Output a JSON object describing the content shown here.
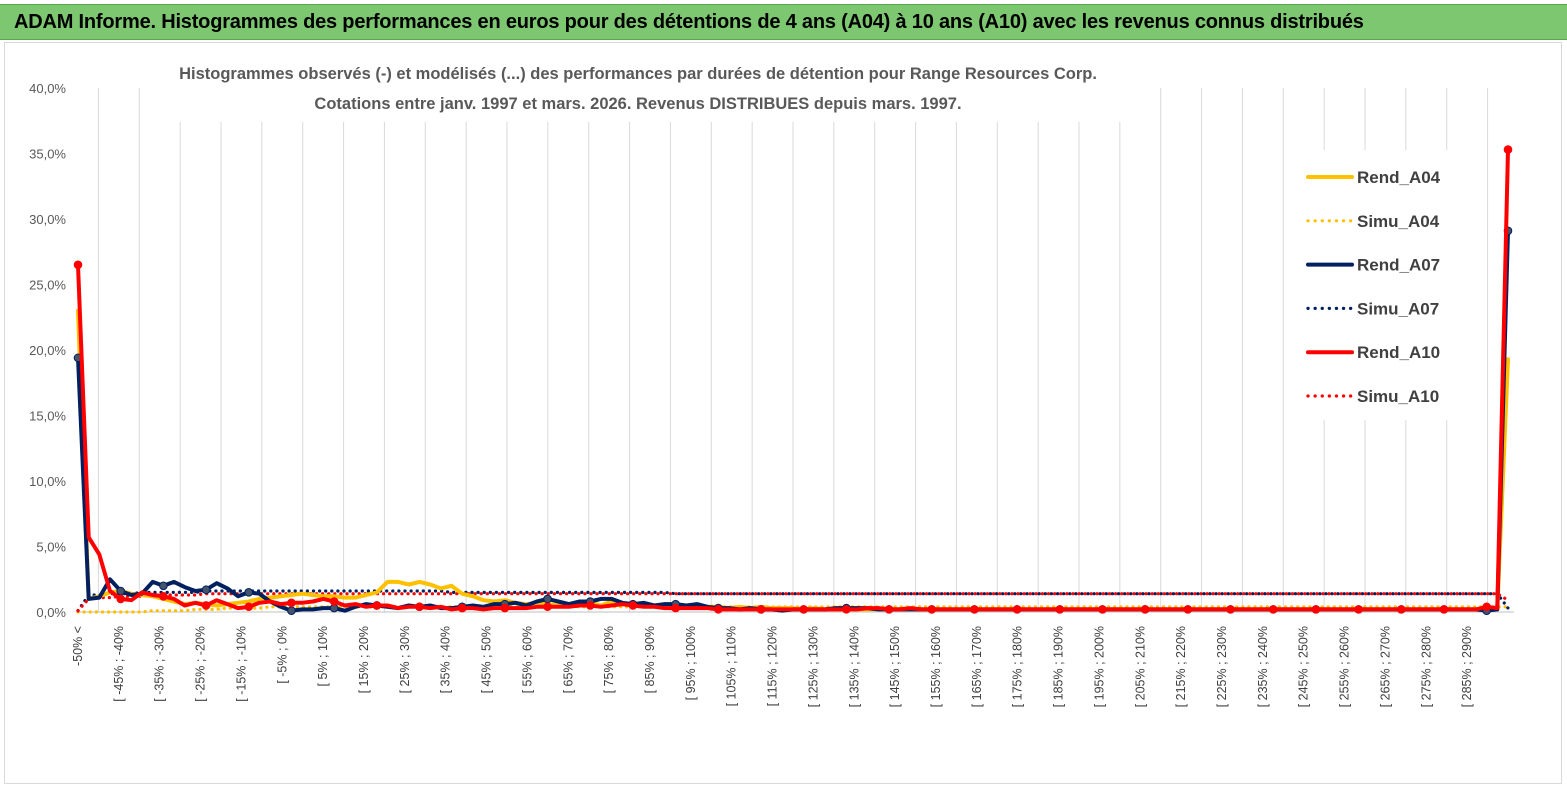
{
  "header": {
    "title": "ADAM Informe. Histogrammes des performances en euros pour des détentions de 4 ans (A04) à 10 ans (A10) avec les revenus connus distribués"
  },
  "chart_data": {
    "type": "line",
    "subtitle_lines": [
      "Histogrammes observés (-) et modélisés (...) des performances par durées de détention pour Range Resources Corp.",
      "Cotations entre janv. 1997 et mars. 2026. Revenus DISTRIBUES depuis mars. 1997."
    ],
    "y_ticks": [
      "0,0%",
      "5,0%",
      "10,0%",
      "15,0%",
      "20,0%",
      "25,0%",
      "30,0%",
      "35,0%",
      "40,0%"
    ],
    "ylim": [
      0,
      40
    ],
    "grid": "vertical",
    "legend_position": "right",
    "x_labels": [
      "-50% <",
      "[ -45% ; -40%",
      "[ -35% ; -30%",
      "[ -25% ; -20%",
      "[ -15% ; -10%",
      "[ -5% ; 0%",
      "[ 5% ; 10%",
      "[ 15% ; 20%",
      "[ 25% ; 30%",
      "[ 35% ; 40%",
      "[ 45% ; 50%",
      "[ 55% ; 60%",
      "[ 65% ; 70%",
      "[ 75% ; 80%",
      "[ 85% ; 90%",
      "[ 95% ; 100%",
      "[ 105% ; 110%",
      "[ 115% ; 120%",
      "[ 125% ; 130%",
      "[ 135% ; 140%",
      "[ 145% ; 150%",
      "[ 155% ; 160%",
      "[ 165% ; 170%",
      "[ 175% ; 180%",
      "[ 185% ; 190%",
      "[ 195% ; 200%",
      "[ 205% ; 210%",
      "[ 215% ; 220%",
      "[ 225% ; 230%",
      "[ 235% ; 240%",
      "[ 245% ; 250%",
      "[ 255% ; 260%",
      "[ 265% ; 270%",
      "[ 275% ; 280%",
      "[ 285% ; 290%"
    ],
    "series": [
      {
        "name": "Rend_A04",
        "style": "solid",
        "color": "#ffc000",
        "markers": false,
        "values": [
          23.0,
          1.0,
          1.2,
          1.5,
          1.6,
          1.4,
          1.3,
          1.2,
          1.0,
          0.8,
          0.6,
          0.7,
          0.6,
          0.5,
          0.6,
          0.7,
          0.8,
          1.0,
          1.1,
          1.2,
          1.3,
          1.4,
          1.3,
          1.2,
          1.2,
          1.1,
          1.1,
          1.3,
          1.5,
          2.3,
          2.3,
          2.1,
          2.3,
          2.1,
          1.8,
          2.0,
          1.4,
          1.2,
          0.9,
          0.8,
          0.9,
          0.7,
          0.6,
          0.7,
          0.6,
          0.5,
          0.6,
          0.5,
          0.7,
          0.5,
          0.8,
          0.6,
          0.5,
          0.6,
          0.5,
          0.6,
          0.4,
          0.5,
          0.4,
          0.4,
          0.4,
          0.3,
          0.4,
          0.3,
          0.4,
          0.3,
          0.3,
          0.3,
          0.2,
          0.3,
          0.2,
          0.2,
          0.2,
          0.2,
          0.2,
          0.2,
          0.2,
          0.2,
          0.2,
          0.2,
          0.2,
          0.2,
          0.2,
          0.2,
          0.2,
          0.2,
          0.2,
          0.2,
          0.2,
          0.2,
          0.2,
          0.2,
          0.2,
          0.2,
          0.2,
          0.2,
          0.2,
          0.2,
          0.2,
          0.2,
          0.2,
          0.2,
          0.2,
          0.2,
          0.2,
          0.2,
          0.2,
          0.2,
          0.2,
          0.2,
          0.2,
          0.2,
          0.2,
          0.2,
          0.2,
          0.2,
          0.2,
          0.2,
          0.2,
          0.2,
          0.2,
          0.2,
          0.2,
          0.2,
          0.2,
          0.2,
          0.2,
          0.2,
          0.2,
          0.2,
          0.2,
          0.2,
          0.2,
          0.2,
          19.3
        ]
      },
      {
        "name": "Simu_A04",
        "style": "dotted",
        "color": "#ffc000",
        "markers": false,
        "values": [
          0.0,
          0.0,
          0.0,
          0.0,
          0.0,
          0.0,
          0.0,
          0.1,
          0.1,
          0.1,
          0.1,
          0.2,
          0.2,
          0.2,
          0.3,
          0.3,
          0.3,
          0.3,
          0.4,
          0.4,
          0.4,
          0.4,
          0.4,
          0.4,
          0.4,
          0.4,
          0.4,
          0.4,
          0.4,
          0.4,
          0.4,
          0.4,
          0.4,
          0.4,
          0.4,
          0.4,
          0.4,
          0.4,
          0.4,
          0.4,
          0.4,
          0.4,
          0.4,
          0.4,
          0.4,
          0.4,
          0.4,
          0.4,
          0.4,
          0.4,
          0.4,
          0.4,
          0.4,
          0.4,
          0.4,
          0.4,
          0.4,
          0.4,
          0.4,
          0.4,
          0.4,
          0.4,
          0.4,
          0.4,
          0.4,
          0.4,
          0.4,
          0.4,
          0.4,
          0.4,
          0.4,
          0.4,
          0.4,
          0.4,
          0.4,
          0.4,
          0.4,
          0.4,
          0.4,
          0.4,
          0.4,
          0.4,
          0.4,
          0.4,
          0.4,
          0.4,
          0.4,
          0.4,
          0.4,
          0.4,
          0.4,
          0.4,
          0.4,
          0.4,
          0.4,
          0.4,
          0.4,
          0.4,
          0.4,
          0.4,
          0.4,
          0.4,
          0.4,
          0.4,
          0.4,
          0.4,
          0.4,
          0.4,
          0.4,
          0.4,
          0.4,
          0.4,
          0.4,
          0.4,
          0.4,
          0.4,
          0.4,
          0.4,
          0.4,
          0.4,
          0.4,
          0.4,
          0.4,
          0.4,
          0.4,
          0.4,
          0.4,
          0.4,
          0.4,
          0.4,
          0.4,
          0.4,
          0.4,
          0.4,
          0.4
        ]
      },
      {
        "name": "Rend_A07",
        "style": "solid",
        "color": "#002060",
        "markers": true,
        "values": [
          19.4,
          1.0,
          1.1,
          2.5,
          1.6,
          1.3,
          1.4,
          2.3,
          2.0,
          2.3,
          1.9,
          1.6,
          1.7,
          2.2,
          1.8,
          1.2,
          1.5,
          1.4,
          0.8,
          0.4,
          0.1,
          0.2,
          0.2,
          0.3,
          0.3,
          0.1,
          0.4,
          0.6,
          0.5,
          0.4,
          0.3,
          0.5,
          0.4,
          0.5,
          0.3,
          0.3,
          0.4,
          0.5,
          0.4,
          0.6,
          0.6,
          0.7,
          0.5,
          0.8,
          1.0,
          0.8,
          0.6,
          0.8,
          0.8,
          1.0,
          1.0,
          0.7,
          0.6,
          0.7,
          0.5,
          0.6,
          0.6,
          0.5,
          0.6,
          0.4,
          0.3,
          0.3,
          0.2,
          0.3,
          0.2,
          0.2,
          0.1,
          0.2,
          0.2,
          0.2,
          0.2,
          0.3,
          0.3,
          0.3,
          0.3,
          0.2,
          0.2,
          0.2,
          0.2,
          0.2,
          0.2,
          0.2,
          0.2,
          0.2,
          0.2,
          0.2,
          0.2,
          0.2,
          0.2,
          0.2,
          0.2,
          0.2,
          0.2,
          0.2,
          0.2,
          0.2,
          0.2,
          0.2,
          0.2,
          0.2,
          0.2,
          0.2,
          0.2,
          0.2,
          0.2,
          0.2,
          0.2,
          0.2,
          0.2,
          0.2,
          0.2,
          0.2,
          0.2,
          0.2,
          0.2,
          0.2,
          0.2,
          0.2,
          0.2,
          0.2,
          0.2,
          0.2,
          0.2,
          0.2,
          0.2,
          0.2,
          0.2,
          0.2,
          0.2,
          0.2,
          0.2,
          0.2,
          0.1,
          0.2,
          29.1
        ]
      },
      {
        "name": "Simu_A07",
        "style": "dotted",
        "color": "#002060",
        "markers": false,
        "values": [
          0.1,
          1.3,
          1.3,
          1.4,
          1.4,
          1.4,
          1.5,
          1.5,
          1.5,
          1.5,
          1.5,
          1.5,
          1.6,
          1.6,
          1.6,
          1.6,
          1.6,
          1.6,
          1.6,
          1.6,
          1.6,
          1.6,
          1.6,
          1.6,
          1.6,
          1.6,
          1.6,
          1.6,
          1.6,
          1.6,
          1.6,
          1.6,
          1.6,
          1.6,
          1.6,
          1.5,
          1.5,
          1.5,
          1.5,
          1.5,
          1.5,
          1.5,
          1.5,
          1.5,
          1.5,
          1.5,
          1.5,
          1.5,
          1.5,
          1.5,
          1.5,
          1.5,
          1.5,
          1.5,
          1.5,
          1.5,
          1.4,
          1.4,
          1.4,
          1.4,
          1.4,
          1.4,
          1.4,
          1.4,
          1.4,
          1.4,
          1.4,
          1.4,
          1.4,
          1.4,
          1.4,
          1.4,
          1.4,
          1.4,
          1.4,
          1.4,
          1.4,
          1.4,
          1.4,
          1.4,
          1.4,
          1.4,
          1.4,
          1.4,
          1.4,
          1.4,
          1.4,
          1.4,
          1.4,
          1.4,
          1.4,
          1.4,
          1.4,
          1.4,
          1.4,
          1.4,
          1.4,
          1.4,
          1.4,
          1.4,
          1.4,
          1.4,
          1.4,
          1.4,
          1.4,
          1.4,
          1.4,
          1.4,
          1.4,
          1.4,
          1.4,
          1.4,
          1.4,
          1.4,
          1.4,
          1.4,
          1.4,
          1.4,
          1.4,
          1.4,
          1.4,
          1.4,
          1.4,
          1.4,
          1.4,
          1.4,
          1.4,
          1.4,
          1.4,
          1.4,
          1.4,
          1.4,
          1.4,
          1.4,
          0.3
        ]
      },
      {
        "name": "Rend_A10",
        "style": "solid",
        "color": "#ff0000",
        "markers": true,
        "values": [
          26.5,
          5.7,
          4.4,
          1.6,
          1.0,
          0.9,
          1.5,
          1.3,
          1.2,
          1.0,
          0.5,
          0.7,
          0.5,
          0.9,
          0.6,
          0.3,
          0.4,
          0.7,
          0.8,
          0.6,
          0.7,
          0.7,
          0.8,
          1.0,
          0.8,
          0.5,
          0.6,
          0.4,
          0.5,
          0.5,
          0.3,
          0.4,
          0.4,
          0.3,
          0.4,
          0.2,
          0.3,
          0.3,
          0.2,
          0.3,
          0.3,
          0.3,
          0.3,
          0.4,
          0.4,
          0.4,
          0.4,
          0.5,
          0.5,
          0.4,
          0.5,
          0.6,
          0.5,
          0.4,
          0.4,
          0.3,
          0.3,
          0.3,
          0.3,
          0.3,
          0.2,
          0.2,
          0.2,
          0.2,
          0.2,
          0.2,
          0.2,
          0.2,
          0.2,
          0.2,
          0.2,
          0.2,
          0.2,
          0.2,
          0.3,
          0.3,
          0.2,
          0.2,
          0.3,
          0.2,
          0.2,
          0.2,
          0.2,
          0.2,
          0.2,
          0.2,
          0.2,
          0.2,
          0.2,
          0.2,
          0.2,
          0.2,
          0.2,
          0.2,
          0.2,
          0.2,
          0.2,
          0.2,
          0.2,
          0.2,
          0.2,
          0.2,
          0.2,
          0.2,
          0.2,
          0.2,
          0.2,
          0.2,
          0.2,
          0.2,
          0.2,
          0.2,
          0.2,
          0.2,
          0.2,
          0.2,
          0.2,
          0.2,
          0.2,
          0.2,
          0.2,
          0.2,
          0.2,
          0.2,
          0.2,
          0.2,
          0.2,
          0.2,
          0.2,
          0.2,
          0.2,
          0.2,
          0.4,
          0.3,
          35.3
        ]
      },
      {
        "name": "Simu_A10",
        "style": "dotted",
        "color": "#ff0000",
        "markers": false,
        "values": [
          0.1,
          1.0,
          1.1,
          1.1,
          1.2,
          1.2,
          1.2,
          1.3,
          1.3,
          1.3,
          1.3,
          1.3,
          1.4,
          1.4,
          1.4,
          1.4,
          1.4,
          1.4,
          1.4,
          1.4,
          1.4,
          1.4,
          1.4,
          1.4,
          1.4,
          1.4,
          1.4,
          1.4,
          1.4,
          1.4,
          1.4,
          1.4,
          1.4,
          1.4,
          1.4,
          1.4,
          1.4,
          1.4,
          1.4,
          1.4,
          1.4,
          1.4,
          1.4,
          1.4,
          1.4,
          1.4,
          1.4,
          1.4,
          1.4,
          1.4,
          1.4,
          1.4,
          1.4,
          1.4,
          1.4,
          1.4,
          1.4,
          1.4,
          1.4,
          1.4,
          1.4,
          1.4,
          1.4,
          1.4,
          1.4,
          1.4,
          1.4,
          1.4,
          1.4,
          1.4,
          1.4,
          1.4,
          1.4,
          1.4,
          1.4,
          1.4,
          1.4,
          1.4,
          1.4,
          1.4,
          1.4,
          1.4,
          1.4,
          1.4,
          1.4,
          1.4,
          1.4,
          1.4,
          1.4,
          1.4,
          1.4,
          1.4,
          1.4,
          1.4,
          1.4,
          1.4,
          1.4,
          1.4,
          1.4,
          1.4,
          1.4,
          1.4,
          1.4,
          1.4,
          1.4,
          1.4,
          1.4,
          1.4,
          1.4,
          1.4,
          1.4,
          1.4,
          1.4,
          1.4,
          1.4,
          1.4,
          1.4,
          1.4,
          1.4,
          1.4,
          1.4,
          1.4,
          1.4,
          1.4,
          1.4,
          1.4,
          1.4,
          1.4,
          1.4,
          1.4,
          1.4,
          1.4,
          1.4,
          1.4,
          0.9
        ]
      }
    ]
  }
}
